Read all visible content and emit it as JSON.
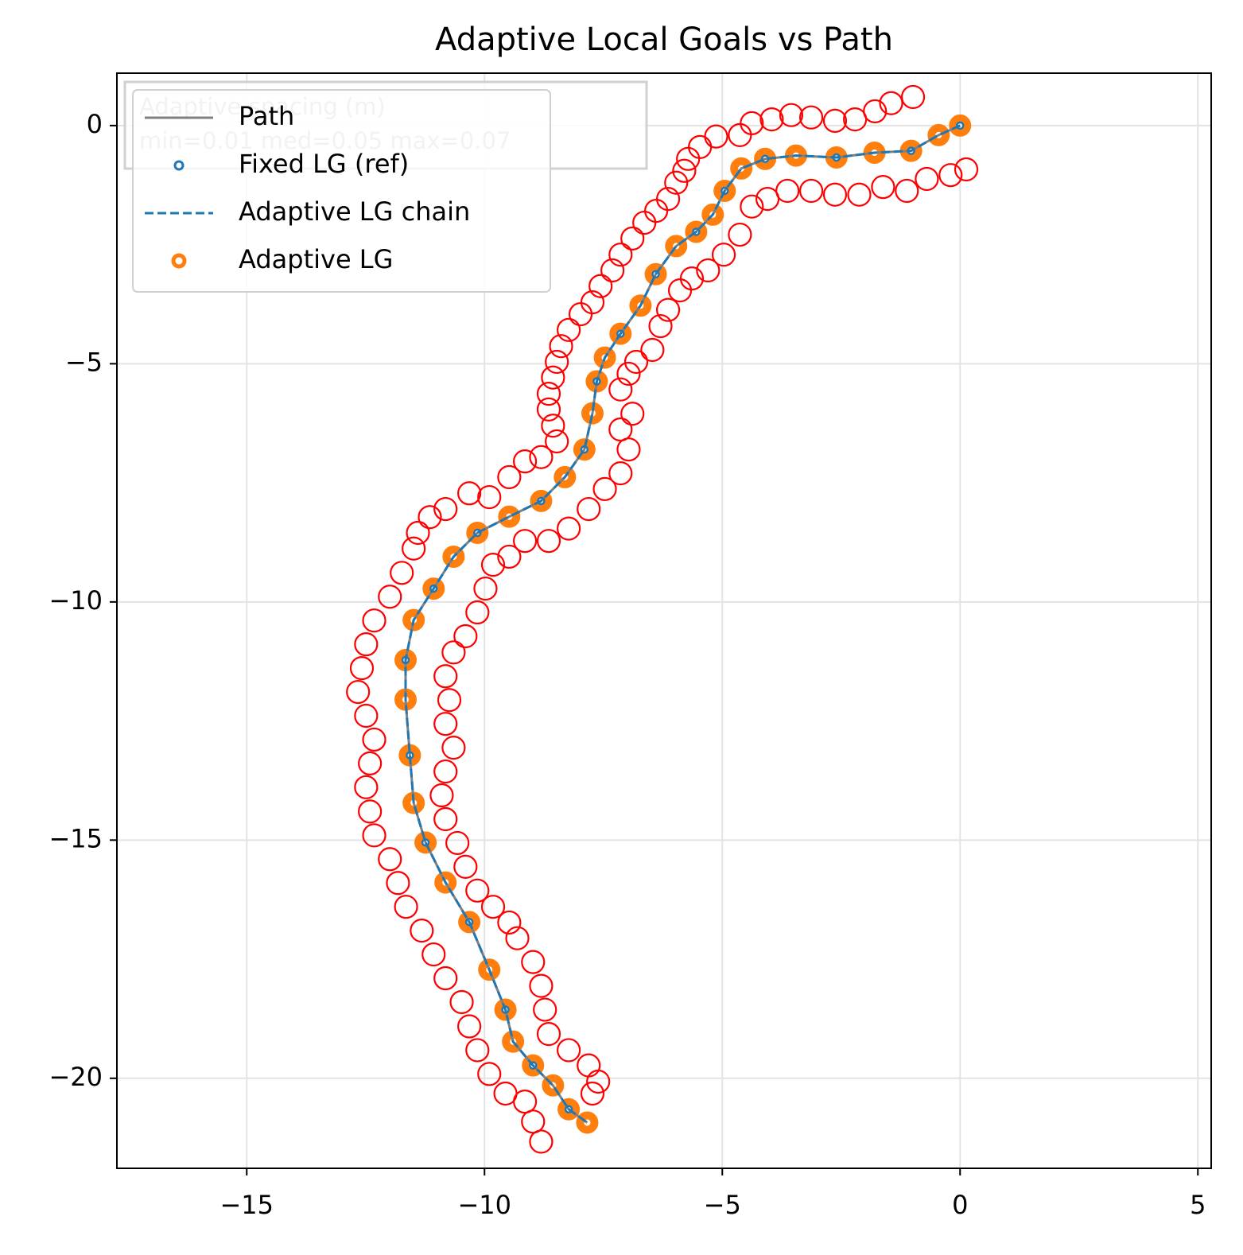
{
  "chart_data": {
    "type": "scatter",
    "title": "Adaptive Local Goals vs Path",
    "xlim": [
      -17.73,
      5.28
    ],
    "ylim": [
      -21.89,
      1.1
    ],
    "xticks": [
      {
        "value": -15,
        "label": "−15"
      },
      {
        "value": -10,
        "label": "−10"
      },
      {
        "value": -5,
        "label": "−5"
      },
      0,
      5
    ],
    "yticks": [
      0,
      {
        "value": -5,
        "label": "−5"
      },
      {
        "value": -10,
        "label": "−10"
      },
      {
        "value": -15,
        "label": "−15"
      },
      {
        "value": -20,
        "label": "−20"
      }
    ],
    "grid": true,
    "legend": "upper left",
    "annotation": [
      "Adaptive spacing (m)",
      "min=0.01  med=0.05  max=0.07"
    ],
    "series": [
      {
        "name": "Path",
        "type": "line",
        "color": "#808080",
        "x": [
          0,
          -0.45,
          -1.03,
          -1.8,
          -2.6,
          -3.45,
          -4.1,
          -4.6,
          -4.95,
          -5.2,
          -5.55,
          -5.97,
          -6.4,
          -6.72,
          -7.14,
          -7.47,
          -7.64,
          -7.73,
          -7.9,
          -8.31,
          -8.81,
          -9.48,
          -10.15,
          -10.65,
          -11.07,
          -11.49,
          -11.66,
          -11.66,
          -11.57,
          -11.49,
          -11.24,
          -10.82,
          -10.32,
          -9.9,
          -9.56,
          -9.4,
          -8.98,
          -8.56,
          -8.23,
          -7.84
        ],
        "y": [
          0,
          -0.2,
          -0.53,
          -0.57,
          -0.67,
          -0.63,
          -0.7,
          -0.9,
          -1.37,
          -1.87,
          -2.23,
          -2.53,
          -3.12,
          -3.78,
          -4.37,
          -4.87,
          -5.37,
          -6.04,
          -6.8,
          -7.38,
          -7.88,
          -8.21,
          -8.55,
          -9.05,
          -9.72,
          -10.38,
          -11.22,
          -12.05,
          -13.22,
          -14.22,
          -15.05,
          -15.89,
          -16.72,
          -17.72,
          -18.56,
          -19.23,
          -19.73,
          -20.15,
          -20.65,
          -20.93
        ]
      },
      {
        "name": "Fixed LG (ref)",
        "type": "scatter",
        "color": "#1f77b4",
        "x": [
          0,
          -1.03,
          -2.6,
          -4.1,
          -4.95,
          -5.55,
          -6.4,
          -7.14,
          -7.64,
          -7.9,
          -8.81,
          -10.15,
          -11.07,
          -11.66,
          -11.57,
          -11.24,
          -10.32,
          -9.56,
          -8.98,
          -8.23
        ],
        "y": [
          0,
          -0.53,
          -0.67,
          -0.7,
          -1.37,
          -2.23,
          -3.12,
          -4.37,
          -5.37,
          -6.8,
          -7.88,
          -8.55,
          -9.72,
          -11.22,
          -13.22,
          -15.05,
          -16.72,
          -18.56,
          -19.73,
          -20.65
        ]
      },
      {
        "name": "Adaptive LG chain",
        "type": "line",
        "color": "#1f77b4",
        "linestyle": "dashed",
        "x": [
          0,
          -0.45,
          -1.03,
          -1.8,
          -2.6,
          -3.45,
          -4.1,
          -4.6,
          -4.95,
          -5.2,
          -5.55,
          -5.97,
          -6.4,
          -6.72,
          -7.14,
          -7.47,
          -7.64,
          -7.73,
          -7.9,
          -8.31,
          -8.81,
          -9.48,
          -10.15,
          -10.65,
          -11.07,
          -11.49,
          -11.66,
          -11.66,
          -11.57,
          -11.49,
          -11.24,
          -10.82,
          -10.32,
          -9.9,
          -9.56,
          -9.4,
          -8.98,
          -8.56,
          -8.23,
          -7.84
        ],
        "y": [
          0,
          -0.2,
          -0.53,
          -0.57,
          -0.67,
          -0.63,
          -0.7,
          -0.9,
          -1.37,
          -1.87,
          -2.23,
          -2.53,
          -3.12,
          -3.78,
          -4.37,
          -4.87,
          -5.37,
          -6.04,
          -6.8,
          -7.38,
          -7.88,
          -8.21,
          -8.55,
          -9.05,
          -9.72,
          -10.38,
          -11.22,
          -12.05,
          -13.22,
          -14.22,
          -15.05,
          -15.89,
          -16.72,
          -17.72,
          -18.56,
          -19.23,
          -19.73,
          -20.15,
          -20.65,
          -20.93
        ]
      },
      {
        "name": "Adaptive LG",
        "type": "scatter",
        "color": "#ff7f0e",
        "x": [
          0,
          -0.45,
          -1.03,
          -1.8,
          -2.6,
          -3.45,
          -4.1,
          -4.6,
          -4.95,
          -5.2,
          -5.55,
          -5.97,
          -6.4,
          -6.72,
          -7.14,
          -7.47,
          -7.64,
          -7.73,
          -7.9,
          -8.31,
          -8.81,
          -9.48,
          -10.15,
          -10.65,
          -11.07,
          -11.49,
          -11.66,
          -11.66,
          -11.57,
          -11.49,
          -11.24,
          -10.82,
          -10.32,
          -9.9,
          -9.56,
          -9.4,
          -8.98,
          -8.56,
          -8.23,
          -7.84
        ],
        "y": [
          0,
          -0.2,
          -0.53,
          -0.57,
          -0.67,
          -0.63,
          -0.7,
          -0.9,
          -1.37,
          -1.87,
          -2.23,
          -2.53,
          -3.12,
          -3.78,
          -4.37,
          -4.87,
          -5.37,
          -6.04,
          -6.8,
          -7.38,
          -7.88,
          -8.21,
          -8.55,
          -9.05,
          -9.72,
          -10.38,
          -11.22,
          -12.05,
          -13.22,
          -14.22,
          -15.05,
          -15.89,
          -16.72,
          -17.72,
          -18.56,
          -19.23,
          -19.73,
          -20.15,
          -20.65,
          -20.93
        ]
      },
      {
        "type": "scatter",
        "color": "#ff0000",
        "x": [
          -0.99,
          -1.45,
          -1.79,
          -2.21,
          -2.63,
          -3.13,
          -3.55,
          -3.96,
          -4.38,
          -4.63,
          -5.13,
          -5.47,
          -5.72,
          -5.8,
          -5.97,
          -6.14,
          -6.39,
          -6.64,
          -6.89,
          -7.14,
          -7.31,
          -7.56,
          -7.73,
          -7.98,
          -8.23,
          -8.39,
          -8.48,
          -8.56,
          -8.65,
          -8.65,
          -8.56,
          -8.48,
          -8.81,
          -9.15,
          -9.48,
          -9.9,
          -10.32,
          -10.82,
          -11.15,
          -11.4,
          -11.49,
          -11.74,
          -11.99,
          -12.32,
          -12.49,
          -12.58,
          -12.66,
          -12.49,
          -12.32,
          -12.41,
          -12.49,
          -12.41,
          -12.32,
          -11.99,
          -11.82,
          -11.65,
          -11.32,
          -11.07,
          -10.82,
          -10.48,
          -10.32,
          -10.15,
          -9.9,
          -9.56,
          -9.15,
          -8.98,
          -8.81,
          0.13,
          -0.2,
          -0.7,
          -1.12,
          -1.62,
          -2.12,
          -2.63,
          -3.13,
          -3.63,
          -4.05,
          -4.38,
          -4.63,
          -4.97,
          -5.3,
          -5.64,
          -5.89,
          -6.14,
          -6.3,
          -6.47,
          -6.81,
          -6.97,
          -7.14,
          -6.89,
          -7.14,
          -6.97,
          -7.14,
          -7.47,
          -7.81,
          -8.23,
          -8.65,
          -9.15,
          -9.48,
          -9.82,
          -9.98,
          -10.15,
          -10.4,
          -10.65,
          -10.82,
          -10.74,
          -10.82,
          -10.65,
          -10.82,
          -10.9,
          -10.82,
          -10.57,
          -10.4,
          -10.15,
          -9.82,
          -9.48,
          -9.31,
          -8.98,
          -8.81,
          -8.73,
          -8.65,
          -8.23,
          -7.81,
          -7.61,
          -7.73
        ],
        "y": [
          0.6,
          0.47,
          0.3,
          0.13,
          0.1,
          0.17,
          0.22,
          0.13,
          0.05,
          -0.2,
          -0.23,
          -0.45,
          -0.7,
          -0.95,
          -1.2,
          -1.54,
          -1.79,
          -2.04,
          -2.37,
          -2.71,
          -3.04,
          -3.37,
          -3.71,
          -3.96,
          -4.29,
          -4.63,
          -4.96,
          -5.29,
          -5.63,
          -5.96,
          -6.3,
          -6.63,
          -6.96,
          -7.05,
          -7.38,
          -7.8,
          -7.72,
          -8.05,
          -8.22,
          -8.55,
          -8.88,
          -9.39,
          -9.89,
          -10.39,
          -10.89,
          -11.39,
          -11.89,
          -12.39,
          -12.89,
          -13.39,
          -13.89,
          -14.4,
          -14.9,
          -15.4,
          -15.9,
          -16.4,
          -16.9,
          -17.4,
          -17.9,
          -18.4,
          -18.91,
          -19.41,
          -19.91,
          -20.32,
          -20.49,
          -20.91,
          -21.33,
          -0.92,
          -1.04,
          -1.12,
          -1.37,
          -1.29,
          -1.45,
          -1.45,
          -1.37,
          -1.37,
          -1.54,
          -1.7,
          -2.29,
          -2.71,
          -3.04,
          -3.21,
          -3.46,
          -3.87,
          -4.21,
          -4.71,
          -4.96,
          -5.21,
          -5.54,
          -6.05,
          -6.38,
          -6.8,
          -7.3,
          -7.63,
          -8.05,
          -8.46,
          -8.72,
          -8.72,
          -9.05,
          -9.22,
          -9.72,
          -10.22,
          -10.72,
          -11.06,
          -11.56,
          -12.06,
          -12.56,
          -13.06,
          -13.56,
          -14.06,
          -14.56,
          -15.06,
          -15.56,
          -16.06,
          -16.4,
          -16.73,
          -17.06,
          -17.56,
          -18.06,
          -18.56,
          -19.07,
          -19.41,
          -19.73,
          -20.07,
          -20.32
        ]
      }
    ]
  }
}
